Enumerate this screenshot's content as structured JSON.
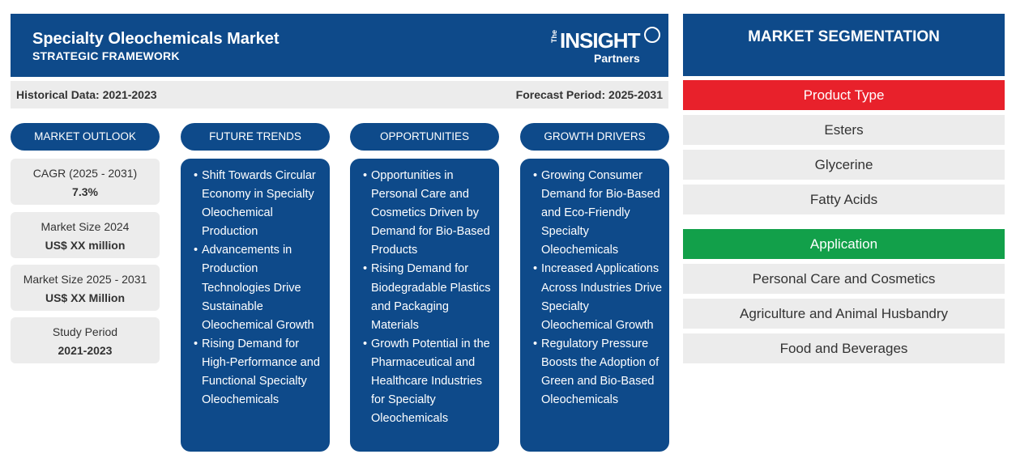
{
  "header": {
    "title": "Specialty Oleochemicals Market",
    "subtitle": "STRATEGIC FRAMEWORK",
    "logo": {
      "the": "The",
      "insight": "INSIGHT",
      "partners": "Partners"
    }
  },
  "period": {
    "historical": "Historical Data: 2021-2023",
    "forecast": "Forecast Period: 2025-2031"
  },
  "columns": {
    "outlook": "MARKET OUTLOOK",
    "trends": "FUTURE TRENDS",
    "opportunities": "OPPORTUNITIES",
    "drivers": "GROWTH DRIVERS"
  },
  "outlook": [
    {
      "label": "CAGR (2025 - 2031)",
      "value": "7.3%"
    },
    {
      "label": "Market Size 2024",
      "value": "US$ XX million"
    },
    {
      "label": "Market Size 2025 - 2031",
      "value": "US$ XX Million"
    },
    {
      "label": "Study Period",
      "value": "2021-2023"
    }
  ],
  "trends": [
    "Shift Towards Circular Economy in Specialty Oleochemical Production",
    "Advancements in Production Technologies Drive Sustainable Oleochemical Growth",
    "Rising Demand for High-Performance and Functional Specialty Oleochemicals"
  ],
  "opportunities": [
    "Opportunities in Personal Care and Cosmetics Driven by Demand for Bio-Based Products",
    "Rising Demand for Biodegradable Plastics and Packaging Materials",
    "Growth Potential in the Pharmaceutical and Healthcare Industries for Specialty Oleochemicals"
  ],
  "drivers": [
    "Growing Consumer Demand for Bio-Based and Eco-Friendly Specialty Oleochemicals",
    "Increased Applications Across Industries Drive Specialty Oleochemical Growth",
    "Regulatory Pressure Boosts the Adoption of Green and Bio-Based Oleochemicals"
  ],
  "segmentation": {
    "title": "MARKET SEGMENTATION",
    "product_type": {
      "label": "Product Type",
      "color": "#e8212b",
      "items": [
        "Esters",
        "Glycerine",
        "Fatty Acids"
      ]
    },
    "application": {
      "label": "Application",
      "color": "#12a04a",
      "items": [
        "Personal Care and Cosmetics",
        "Agriculture and Animal Husbandry",
        "Food and Beverages"
      ]
    }
  },
  "colors": {
    "primary": "#0e4a8a",
    "panel": "#ececec"
  }
}
